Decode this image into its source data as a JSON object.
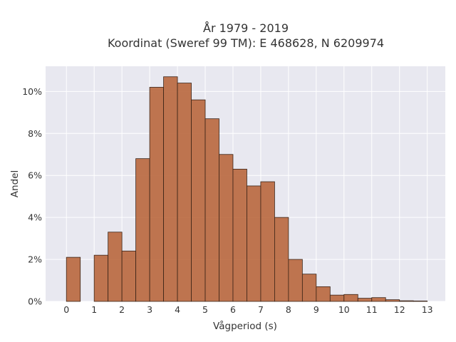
{
  "chart_data": {
    "type": "bar",
    "title": "År 1979 - 2019",
    "subtitle": "Koordinat (Sweref 99 TM): E 468628, N 6209974",
    "xlabel": "Vågperiod (s)",
    "ylabel": "Andel",
    "xlim": [
      -0.75,
      13.65
    ],
    "ylim": [
      0,
      11.2
    ],
    "bin_width": 0.5,
    "x_ticks": [
      0,
      1,
      2,
      3,
      4,
      5,
      6,
      7,
      8,
      9,
      10,
      11,
      12,
      13
    ],
    "x_tick_labels": [
      "0",
      "1",
      "2",
      "3",
      "4",
      "5",
      "6",
      "7",
      "8",
      "9",
      "10",
      "11",
      "12",
      "13"
    ],
    "y_ticks": [
      0,
      2,
      4,
      6,
      8,
      10
    ],
    "y_tick_labels": [
      "0%",
      "2%",
      "4%",
      "6%",
      "8%",
      "10%"
    ],
    "grid": true,
    "bins": [
      {
        "start": 0.0,
        "value": 2.1
      },
      {
        "start": 1.0,
        "value": 2.2
      },
      {
        "start": 1.5,
        "value": 3.3
      },
      {
        "start": 2.0,
        "value": 2.4
      },
      {
        "start": 2.5,
        "value": 6.8
      },
      {
        "start": 3.0,
        "value": 10.2
      },
      {
        "start": 3.5,
        "value": 10.7
      },
      {
        "start": 4.0,
        "value": 10.4
      },
      {
        "start": 4.5,
        "value": 9.6
      },
      {
        "start": 5.0,
        "value": 8.7
      },
      {
        "start": 5.5,
        "value": 7.0
      },
      {
        "start": 6.0,
        "value": 6.3
      },
      {
        "start": 6.5,
        "value": 5.5
      },
      {
        "start": 7.0,
        "value": 5.7
      },
      {
        "start": 7.5,
        "value": 4.0
      },
      {
        "start": 8.0,
        "value": 2.0
      },
      {
        "start": 8.5,
        "value": 1.3
      },
      {
        "start": 9.0,
        "value": 0.7
      },
      {
        "start": 9.5,
        "value": 0.3
      },
      {
        "start": 10.0,
        "value": 0.33
      },
      {
        "start": 10.5,
        "value": 0.15
      },
      {
        "start": 11.0,
        "value": 0.18
      },
      {
        "start": 11.5,
        "value": 0.08
      },
      {
        "start": 12.0,
        "value": 0.03
      },
      {
        "start": 12.5,
        "value": 0.02
      }
    ],
    "colors": {
      "bar": "#b9673d",
      "bar_edge": "#3a2418",
      "plot_background": "#e8e8f0",
      "grid": "#ffffff"
    }
  }
}
